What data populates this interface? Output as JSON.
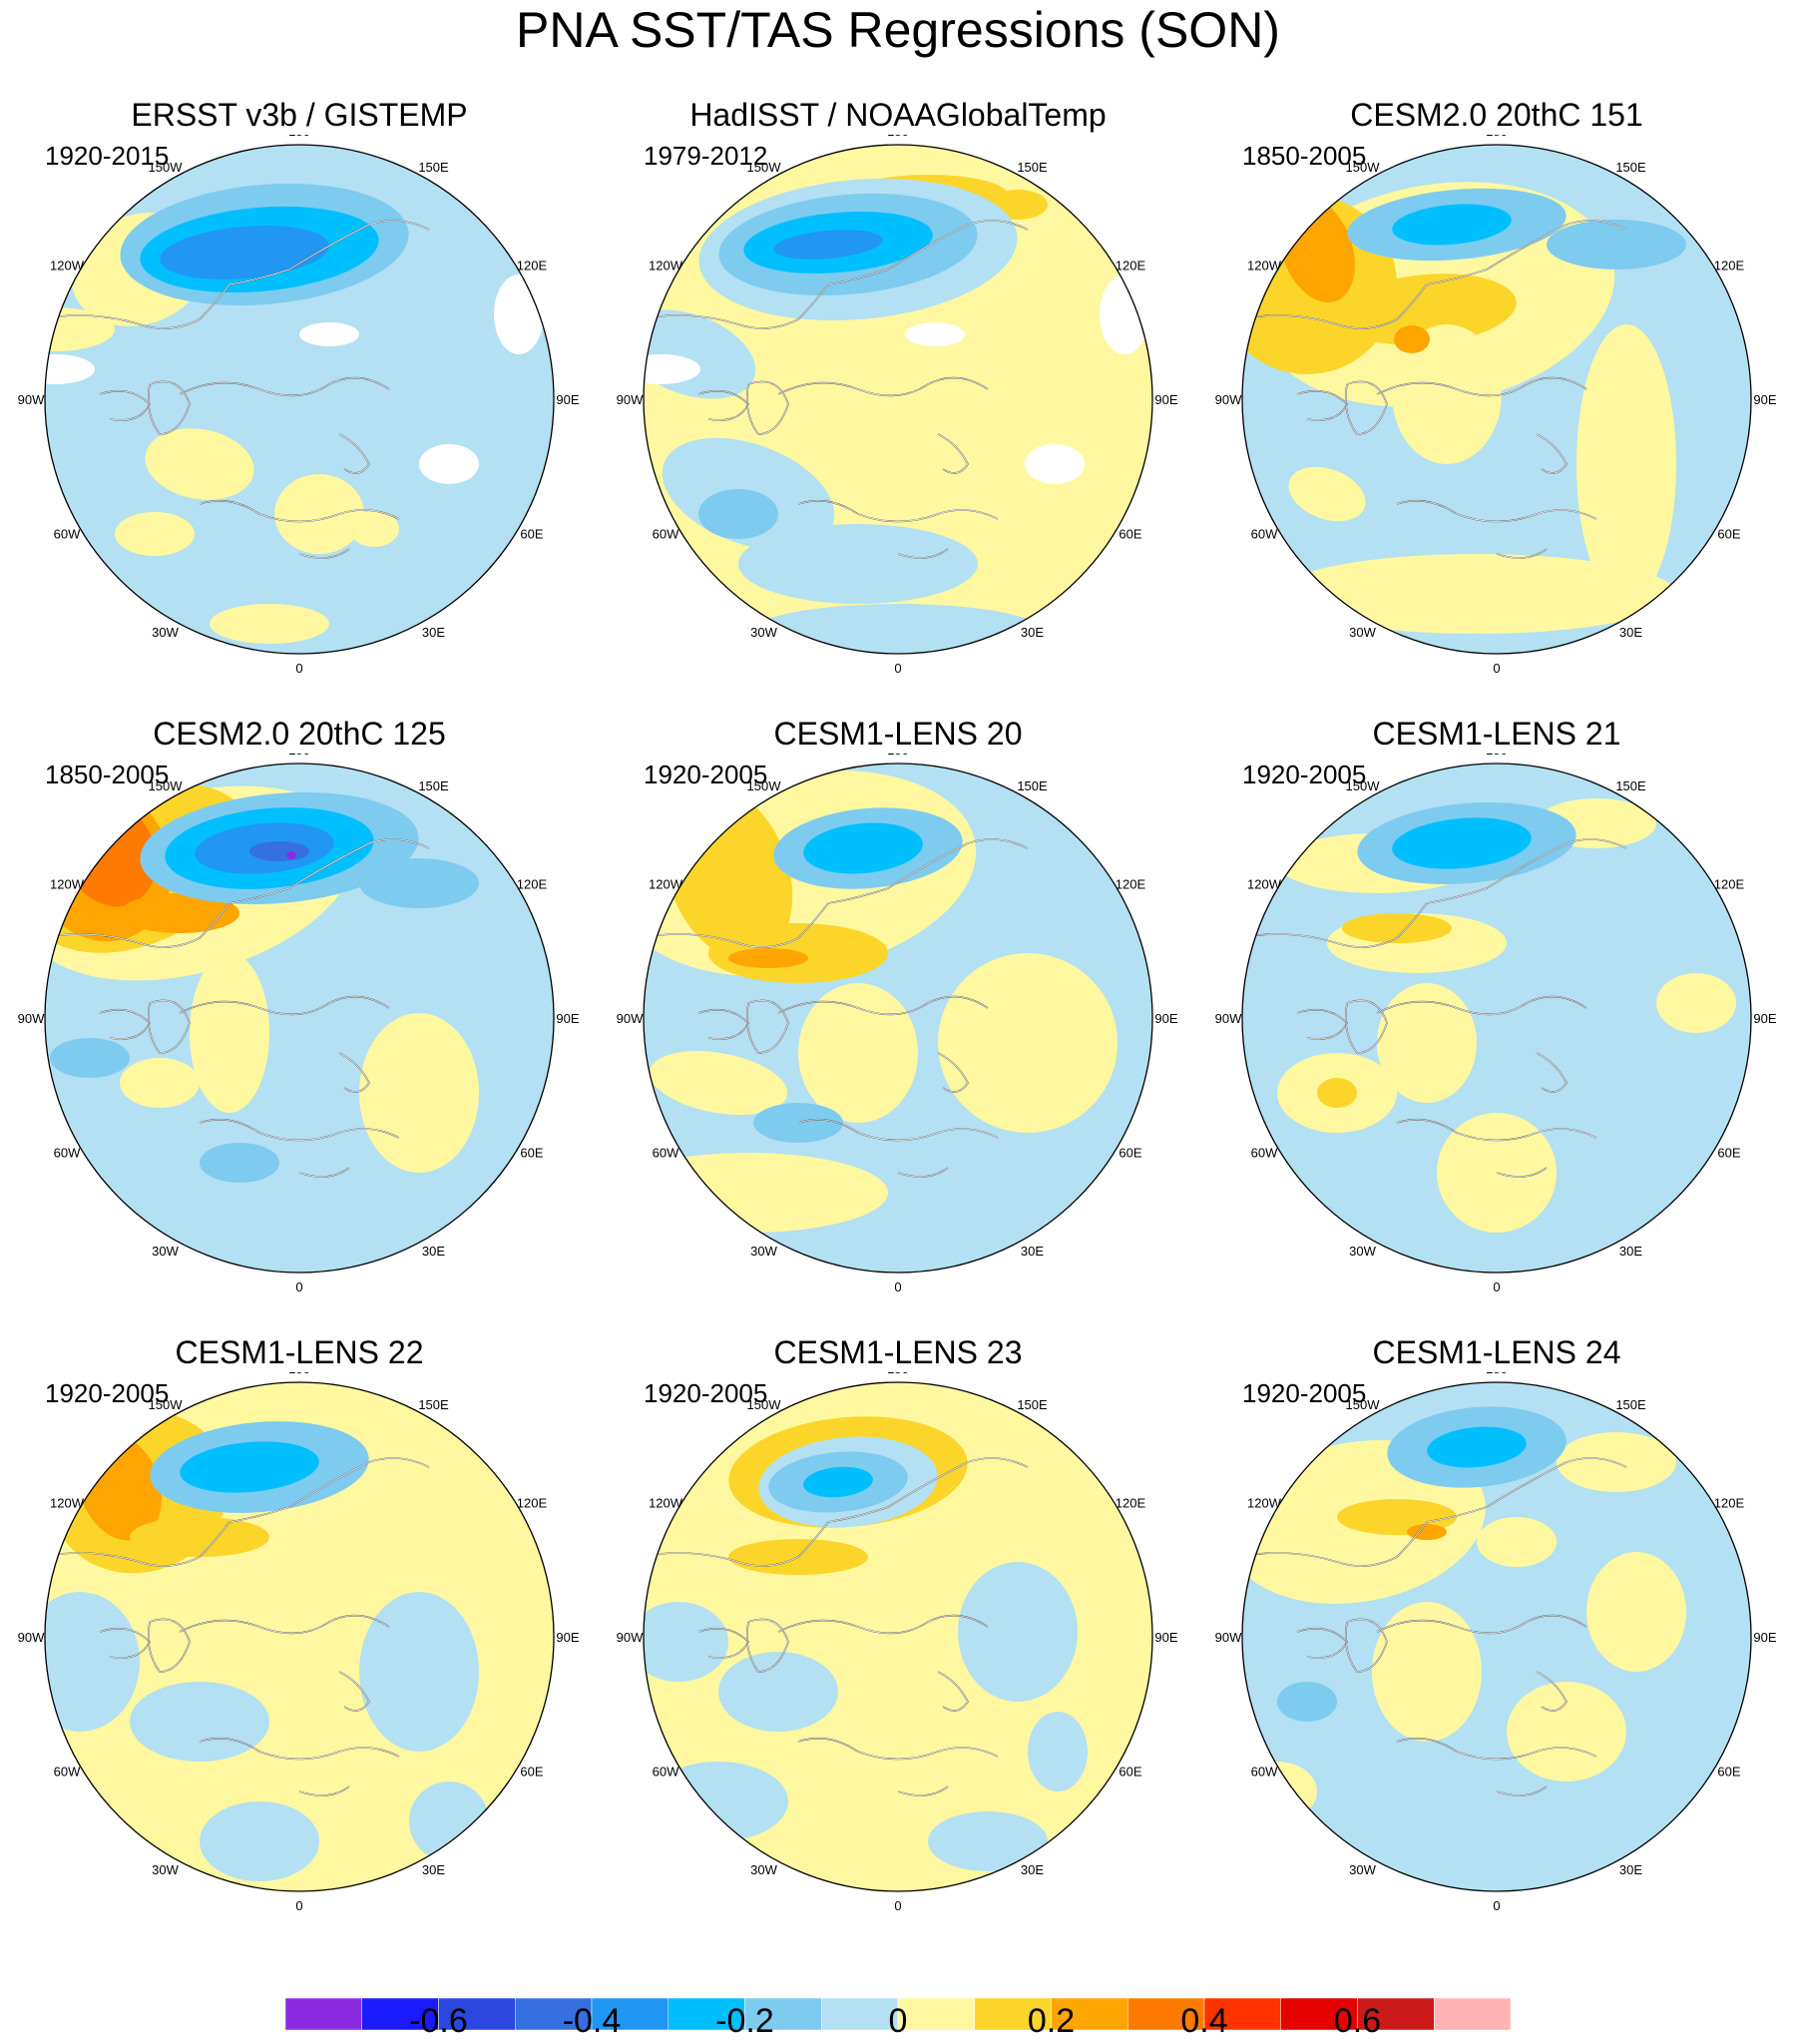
{
  "title": "PNA SST/TAS Regressions (SON)",
  "longitude_labels": [
    "180",
    "150E",
    "120E",
    "90E",
    "60E",
    "30E",
    "0",
    "30W",
    "60W",
    "90W",
    "120W",
    "150W"
  ],
  "panels": [
    {
      "title": "ERSST v3b / GISTEMP",
      "period": "1920-2015",
      "pattern": "obs1"
    },
    {
      "title": "HadISST / NOAAGlobalTemp",
      "period": "1979-2012",
      "pattern": "obs2"
    },
    {
      "title": "CESM2.0 20thC 151",
      "period": "1850-2005",
      "pattern": "m1"
    },
    {
      "title": "CESM2.0 20thC 125",
      "period": "1850-2005",
      "pattern": "m2"
    },
    {
      "title": "CESM1-LENS 20",
      "period": "1920-2005",
      "pattern": "m3"
    },
    {
      "title": "CESM1-LENS 21",
      "period": "1920-2005",
      "pattern": "m4"
    },
    {
      "title": "CESM1-LENS 22",
      "period": "1920-2005",
      "pattern": "m5"
    },
    {
      "title": "CESM1-LENS 23",
      "period": "1920-2005",
      "pattern": "m6"
    },
    {
      "title": "CESM1-LENS 24",
      "period": "1920-2005",
      "pattern": "m7"
    }
  ],
  "colorbar": {
    "colors": [
      "#8a2be2",
      "#1a1aff",
      "#2b47e0",
      "#3670e0",
      "#2196f3",
      "#00bfff",
      "#7ecbf0",
      "#b3e0f2",
      "#fff8a0",
      "#fcd52a",
      "#ffa500",
      "#ff7a00",
      "#ff3300",
      "#e60000",
      "#cc1a1a",
      "#ffb3b3"
    ],
    "labels": [
      "-0.6",
      "-0.4",
      "-0.2",
      "0",
      "0.2",
      "0.4",
      "0.6"
    ]
  },
  "colors": {
    "background": "#ffffff",
    "coastline": "#555555",
    "missing": "#ffffff"
  }
}
